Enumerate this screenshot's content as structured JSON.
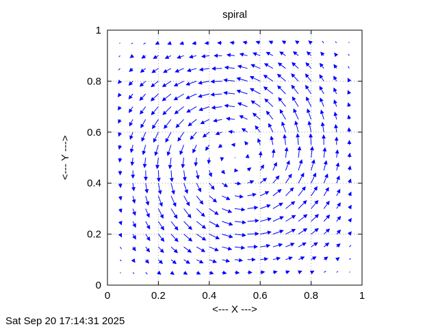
{
  "chart_data": {
    "type": "vector-field",
    "title": "spiral",
    "xlabel": "<--- X --->",
    "ylabel": "<--- Y --->",
    "xlim": [
      0,
      1
    ],
    "ylim": [
      0,
      1
    ],
    "xticks": [
      "0",
      "0.2",
      "0.4",
      "0.6",
      "0.8",
      "1"
    ],
    "yticks": [
      "0",
      "0.2",
      "0.4",
      "0.6",
      "0.8",
      "1"
    ],
    "grid": true,
    "grid_x": [
      0.2,
      0.4,
      0.6,
      0.8
    ],
    "grid_y": [
      0.2,
      0.4,
      0.6,
      0.8
    ],
    "arrow_color": "#0000ff",
    "grid_spacing": 0.05,
    "x_start": 0.05,
    "x_end": 0.95,
    "y_start": 0.05,
    "y_end": 0.95,
    "center": [
      0.5,
      0.5
    ],
    "rotation": "counterclockwise"
  },
  "timestamp": "Sat Sep 20 17:14:31 2025"
}
